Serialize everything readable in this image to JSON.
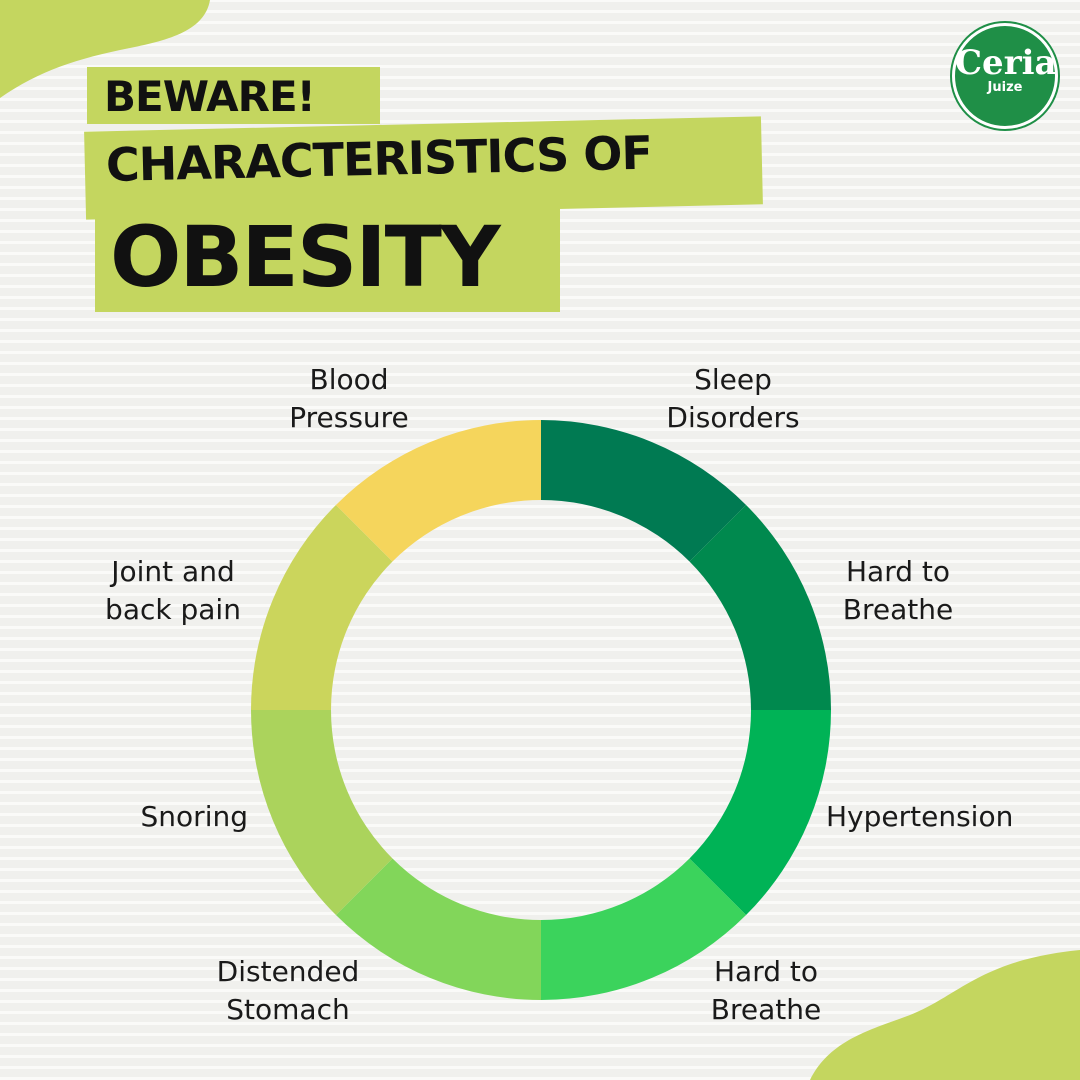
{
  "brand": {
    "logo_text": "Ceria",
    "logo_subtext": "Juize",
    "accent": "#c4d65f",
    "logo_color": "#1f8f47"
  },
  "title": {
    "line1": "BEWARE!",
    "line2": "CHARACTERISTICS OF",
    "line3": "OBESITY"
  },
  "diagram": {
    "type": "donut",
    "segments": [
      {
        "label": "Sleep Disorders",
        "line1": "Sleep",
        "line2": "Disorders",
        "color": "#007a52"
      },
      {
        "label": "Hard to Breathe",
        "line1": "Hard to",
        "line2": "Breathe",
        "color": "#00894e"
      },
      {
        "label": "Hypertension",
        "line1": "Hypertension",
        "line2": "",
        "color": "#00b356"
      },
      {
        "label": "Hard to Breathe",
        "line1": "Hard to",
        "line2": "Breathe",
        "color": "#3bd35c"
      },
      {
        "label": "Distended Stomach",
        "line1": "Distended",
        "line2": "Stomach",
        "color": "#82d65a"
      },
      {
        "label": "Snoring",
        "line1": "Snoring",
        "line2": "",
        "color": "#abd35c"
      },
      {
        "label": "Joint and back pain",
        "line1": "Joint and",
        "line2": "back pain",
        "color": "#cbd55c"
      },
      {
        "label": "Blood Pressure",
        "line1": "Blood",
        "line2": "Pressure",
        "color": "#f5d55c"
      }
    ]
  }
}
